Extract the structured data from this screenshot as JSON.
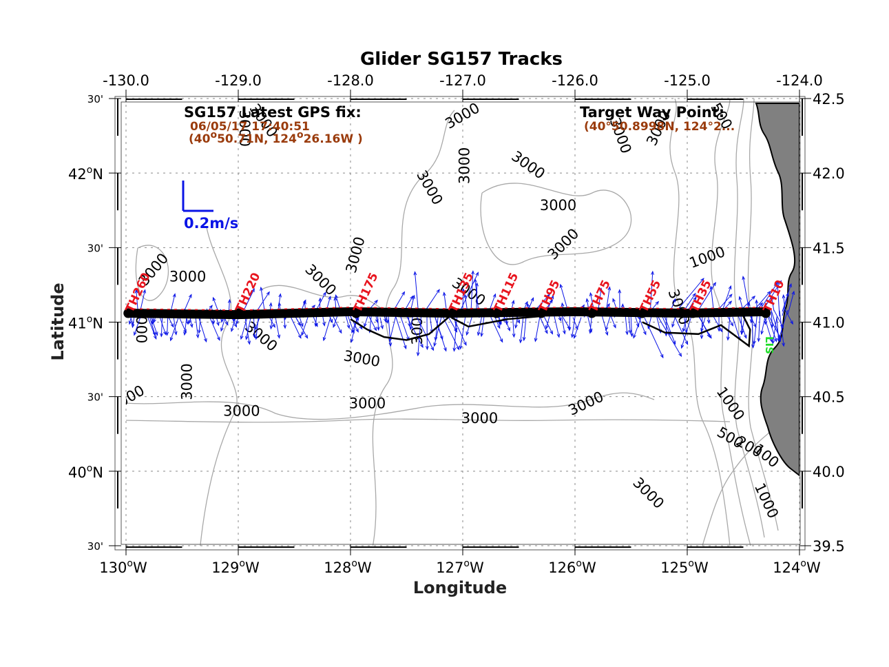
{
  "chart_data": {
    "type": "map",
    "title": "Glider SG157 Tracks",
    "xlabel": "Longitude",
    "ylabel": "Latitude",
    "xlim": [
      -130.0,
      -124.0
    ],
    "ylim": [
      39.5,
      42.5
    ],
    "grid": true,
    "x_ticks_top": [
      "-130.0",
      "-129.0",
      "-128.0",
      "-127.0",
      "-126.0",
      "-125.0",
      "-124.0"
    ],
    "x_ticks_bottom": [
      {
        "value": -130,
        "label": "130",
        "suffix": "W"
      },
      {
        "value": -129,
        "label": "129",
        "suffix": "W"
      },
      {
        "value": -128,
        "label": "128",
        "suffix": "W"
      },
      {
        "value": -127,
        "label": "127",
        "suffix": "W"
      },
      {
        "value": -126,
        "label": "126",
        "suffix": "W"
      },
      {
        "value": -125,
        "label": "125",
        "suffix": "W"
      },
      {
        "value": -124,
        "label": "124",
        "suffix": "W"
      }
    ],
    "y_ticks_left": [
      {
        "value": 42.5,
        "label": "30'",
        "minor": true
      },
      {
        "value": 42.0,
        "label": "42",
        "suffix": "N",
        "minor": false
      },
      {
        "value": 41.5,
        "label": "30'",
        "minor": true
      },
      {
        "value": 41.0,
        "label": "41",
        "suffix": "N",
        "minor": false
      },
      {
        "value": 40.5,
        "label": "30'",
        "minor": true
      },
      {
        "value": 40.0,
        "label": "40",
        "suffix": "N",
        "minor": false
      },
      {
        "value": 39.5,
        "label": "30'",
        "minor": true
      }
    ],
    "y_ticks_right": [
      "42.5",
      "42.0",
      "41.5",
      "41.0",
      "40.5",
      "40.0",
      "39.5"
    ],
    "latest_gps_fix": {
      "heading": "SG157 Latest GPS fix:",
      "datetime": "06/05/17 17:40:51",
      "position_text": "(40°50.71N, 124°26.16W )",
      "lat_deg": "40",
      "lat_min": "50.71N",
      "lon_deg": "124",
      "lon_min": "26.16W"
    },
    "target_waypoint": {
      "heading": "Target Way Point:",
      "position_text": "(40°50.8998N, 124°2..."
    },
    "velocity_scale": {
      "label": "0.2m/s",
      "value_mps": 0.2,
      "color": "#0a14e6"
    },
    "stations": [
      {
        "name": "TH260",
        "lon": -129.98,
        "lat": 41.05
      },
      {
        "name": "TH220",
        "lon": -129.0,
        "lat": 41.05
      },
      {
        "name": "TH175",
        "lon": -127.95,
        "lat": 41.05
      },
      {
        "name": "TH135",
        "lon": -127.1,
        "lat": 41.05
      },
      {
        "name": "TH115",
        "lon": -126.7,
        "lat": 41.05
      },
      {
        "name": "TH95",
        "lon": -126.3,
        "lat": 41.05
      },
      {
        "name": "TH75",
        "lon": -125.85,
        "lat": 41.05
      },
      {
        "name": "TH55",
        "lon": -125.4,
        "lat": 41.05
      },
      {
        "name": "TH35",
        "lon": -124.95,
        "lat": 41.05
      },
      {
        "name": "TH10",
        "lon": -124.3,
        "lat": 41.05
      }
    ],
    "lis_label": "LIS",
    "contour_labels": [
      {
        "text": "3000",
        "lon": -129.75,
        "lat": 41.35,
        "rot": -50
      },
      {
        "text": "000",
        "lon": -129.85,
        "lat": 40.95,
        "rot": -90
      },
      {
        "text": "3000",
        "lon": -129.45,
        "lat": 41.3,
        "rot": 0
      },
      {
        "text": "3000",
        "lon": -128.8,
        "lat": 40.9,
        "rot": 40
      },
      {
        "text": "3000",
        "lon": -128.27,
        "lat": 41.28,
        "rot": 45
      },
      {
        "text": "3000",
        "lon": -127.95,
        "lat": 41.45,
        "rot": -75
      },
      {
        "text": "3000",
        "lon": -127.4,
        "lat": 40.97,
        "rot": -90
      },
      {
        "text": "3000",
        "lon": -127.9,
        "lat": 40.75,
        "rot": 10
      },
      {
        "text": "3000",
        "lon": -129.45,
        "lat": 40.6,
        "rot": -90
      },
      {
        "text": "000",
        "lon": -129.95,
        "lat": 40.5,
        "rot": -30
      },
      {
        "text": "3000",
        "lon": -128.97,
        "lat": 40.4,
        "rot": 0
      },
      {
        "text": "3000",
        "lon": -127.85,
        "lat": 40.45,
        "rot": 0
      },
      {
        "text": "3000",
        "lon": -126.85,
        "lat": 40.35,
        "rot": 0
      },
      {
        "text": "3000",
        "lon": -125.9,
        "lat": 40.45,
        "rot": -25
      },
      {
        "text": "3000",
        "lon": -125.35,
        "lat": 39.85,
        "rot": 45
      },
      {
        "text": "3000",
        "lon": -128.95,
        "lat": 42.3,
        "rot": 90
      },
      {
        "text": "3000",
        "lon": -128.78,
        "lat": 42.35,
        "rot": 55
      },
      {
        "text": "3000",
        "lon": -127.0,
        "lat": 42.38,
        "rot": -30
      },
      {
        "text": "3000",
        "lon": -127.3,
        "lat": 41.9,
        "rot": 60
      },
      {
        "text": "3000",
        "lon": -126.98,
        "lat": 42.05,
        "rot": -90
      },
      {
        "text": "3000",
        "lon": -126.42,
        "lat": 42.05,
        "rot": 35
      },
      {
        "text": "3000",
        "lon": -126.15,
        "lat": 41.78,
        "rot": 0
      },
      {
        "text": "3000",
        "lon": -126.1,
        "lat": 41.52,
        "rot": -45
      },
      {
        "text": "3000",
        "lon": -125.6,
        "lat": 42.25,
        "rot": 70
      },
      {
        "text": "3000",
        "lon": -125.25,
        "lat": 42.3,
        "rot": -65
      },
      {
        "text": "3000",
        "lon": -126.95,
        "lat": 41.2,
        "rot": 35
      },
      {
        "text": "3000",
        "lon": -125.08,
        "lat": 41.1,
        "rot": 70
      },
      {
        "text": "1000",
        "lon": -124.82,
        "lat": 41.43,
        "rot": -20
      },
      {
        "text": "500",
        "lon": -124.7,
        "lat": 42.38,
        "rot": 60
      },
      {
        "text": "1000",
        "lon": -124.62,
        "lat": 40.45,
        "rot": 55
      },
      {
        "text": "500",
        "lon": -124.62,
        "lat": 40.22,
        "rot": 30
      },
      {
        "text": "200",
        "lon": -124.45,
        "lat": 40.16,
        "rot": 30
      },
      {
        "text": "100",
        "lon": -124.3,
        "lat": 40.1,
        "rot": 40
      },
      {
        "text": "1000",
        "lon": -124.3,
        "lat": 39.8,
        "rot": 65
      }
    ],
    "glider_track": {
      "main_lat": 41.06,
      "points": [
        [
          -130.0,
          41.06
        ],
        [
          -129.0,
          41.05
        ],
        [
          -128.0,
          41.07
        ],
        [
          -127.1,
          41.06
        ],
        [
          -126.0,
          41.07
        ],
        [
          -125.0,
          41.06
        ],
        [
          -124.3,
          41.07
        ]
      ],
      "detours": [
        [
          [
            -128.0,
            41.02
          ],
          [
            -127.85,
            40.95
          ],
          [
            -127.7,
            40.9
          ],
          [
            -127.5,
            40.88
          ],
          [
            -127.3,
            40.92
          ],
          [
            -127.1,
            41.05
          ]
        ],
        [
          [
            -127.1,
            41.03
          ],
          [
            -126.95,
            40.97
          ],
          [
            -126.6,
            41.02
          ],
          [
            -126.3,
            41.04
          ]
        ],
        [
          [
            -125.4,
            41.0
          ],
          [
            -125.2,
            40.93
          ],
          [
            -124.9,
            40.92
          ],
          [
            -124.7,
            40.98
          ],
          [
            -124.45,
            40.84
          ],
          [
            -124.44,
            40.95
          ],
          [
            -124.5,
            41.04
          ]
        ]
      ]
    },
    "colors": {
      "track": "#000000",
      "vectors": "#0a14e6",
      "stations": "#e8141e",
      "land": "#808080",
      "contours": "#a8a8a8",
      "gps_text": "#9a3b0c",
      "lis": "#1fdc28"
    }
  }
}
